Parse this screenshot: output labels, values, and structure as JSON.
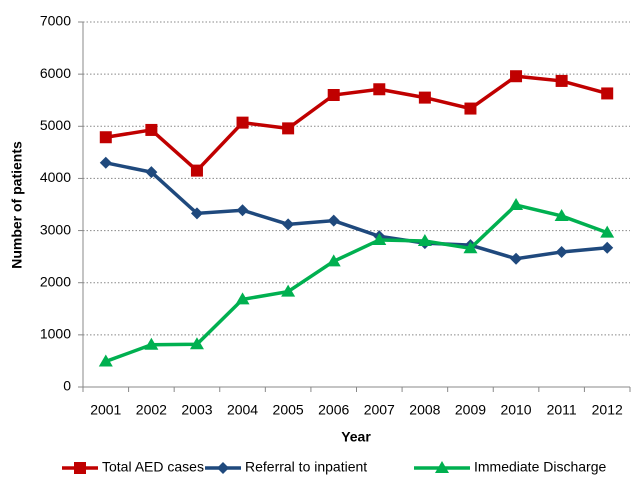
{
  "chart_data": {
    "type": "line",
    "x_label": "Year",
    "y_label": "Number of patients",
    "categories": [
      "2001",
      "2002",
      "2003",
      "2004",
      "2005",
      "2006",
      "2007",
      "2008",
      "2009",
      "2010",
      "2011",
      "2012"
    ],
    "series": [
      {
        "name": "Total AED cases",
        "color": "#c00000",
        "marker": "square",
        "values": [
          4790,
          4930,
          4150,
          5070,
          4960,
          5600,
          5710,
          5550,
          5340,
          5960,
          5870,
          5630
        ]
      },
      {
        "name": "Referral to inpatient",
        "color": "#1f497d",
        "marker": "diamond",
        "values": [
          4300,
          4120,
          3330,
          3390,
          3120,
          3190,
          2890,
          2760,
          2720,
          2460,
          2590,
          2670
        ]
      },
      {
        "name": "Immediate Discharge",
        "color": "#00b050",
        "marker": "triangle",
        "values": [
          490,
          810,
          820,
          1680,
          1830,
          2410,
          2820,
          2800,
          2660,
          3490,
          3280,
          2960
        ]
      }
    ],
    "ylim": [
      0,
      7000
    ],
    "yticks": [
      0,
      1000,
      2000,
      3000,
      4000,
      5000,
      6000,
      7000
    ],
    "grid": true,
    "legend": "bottom"
  }
}
